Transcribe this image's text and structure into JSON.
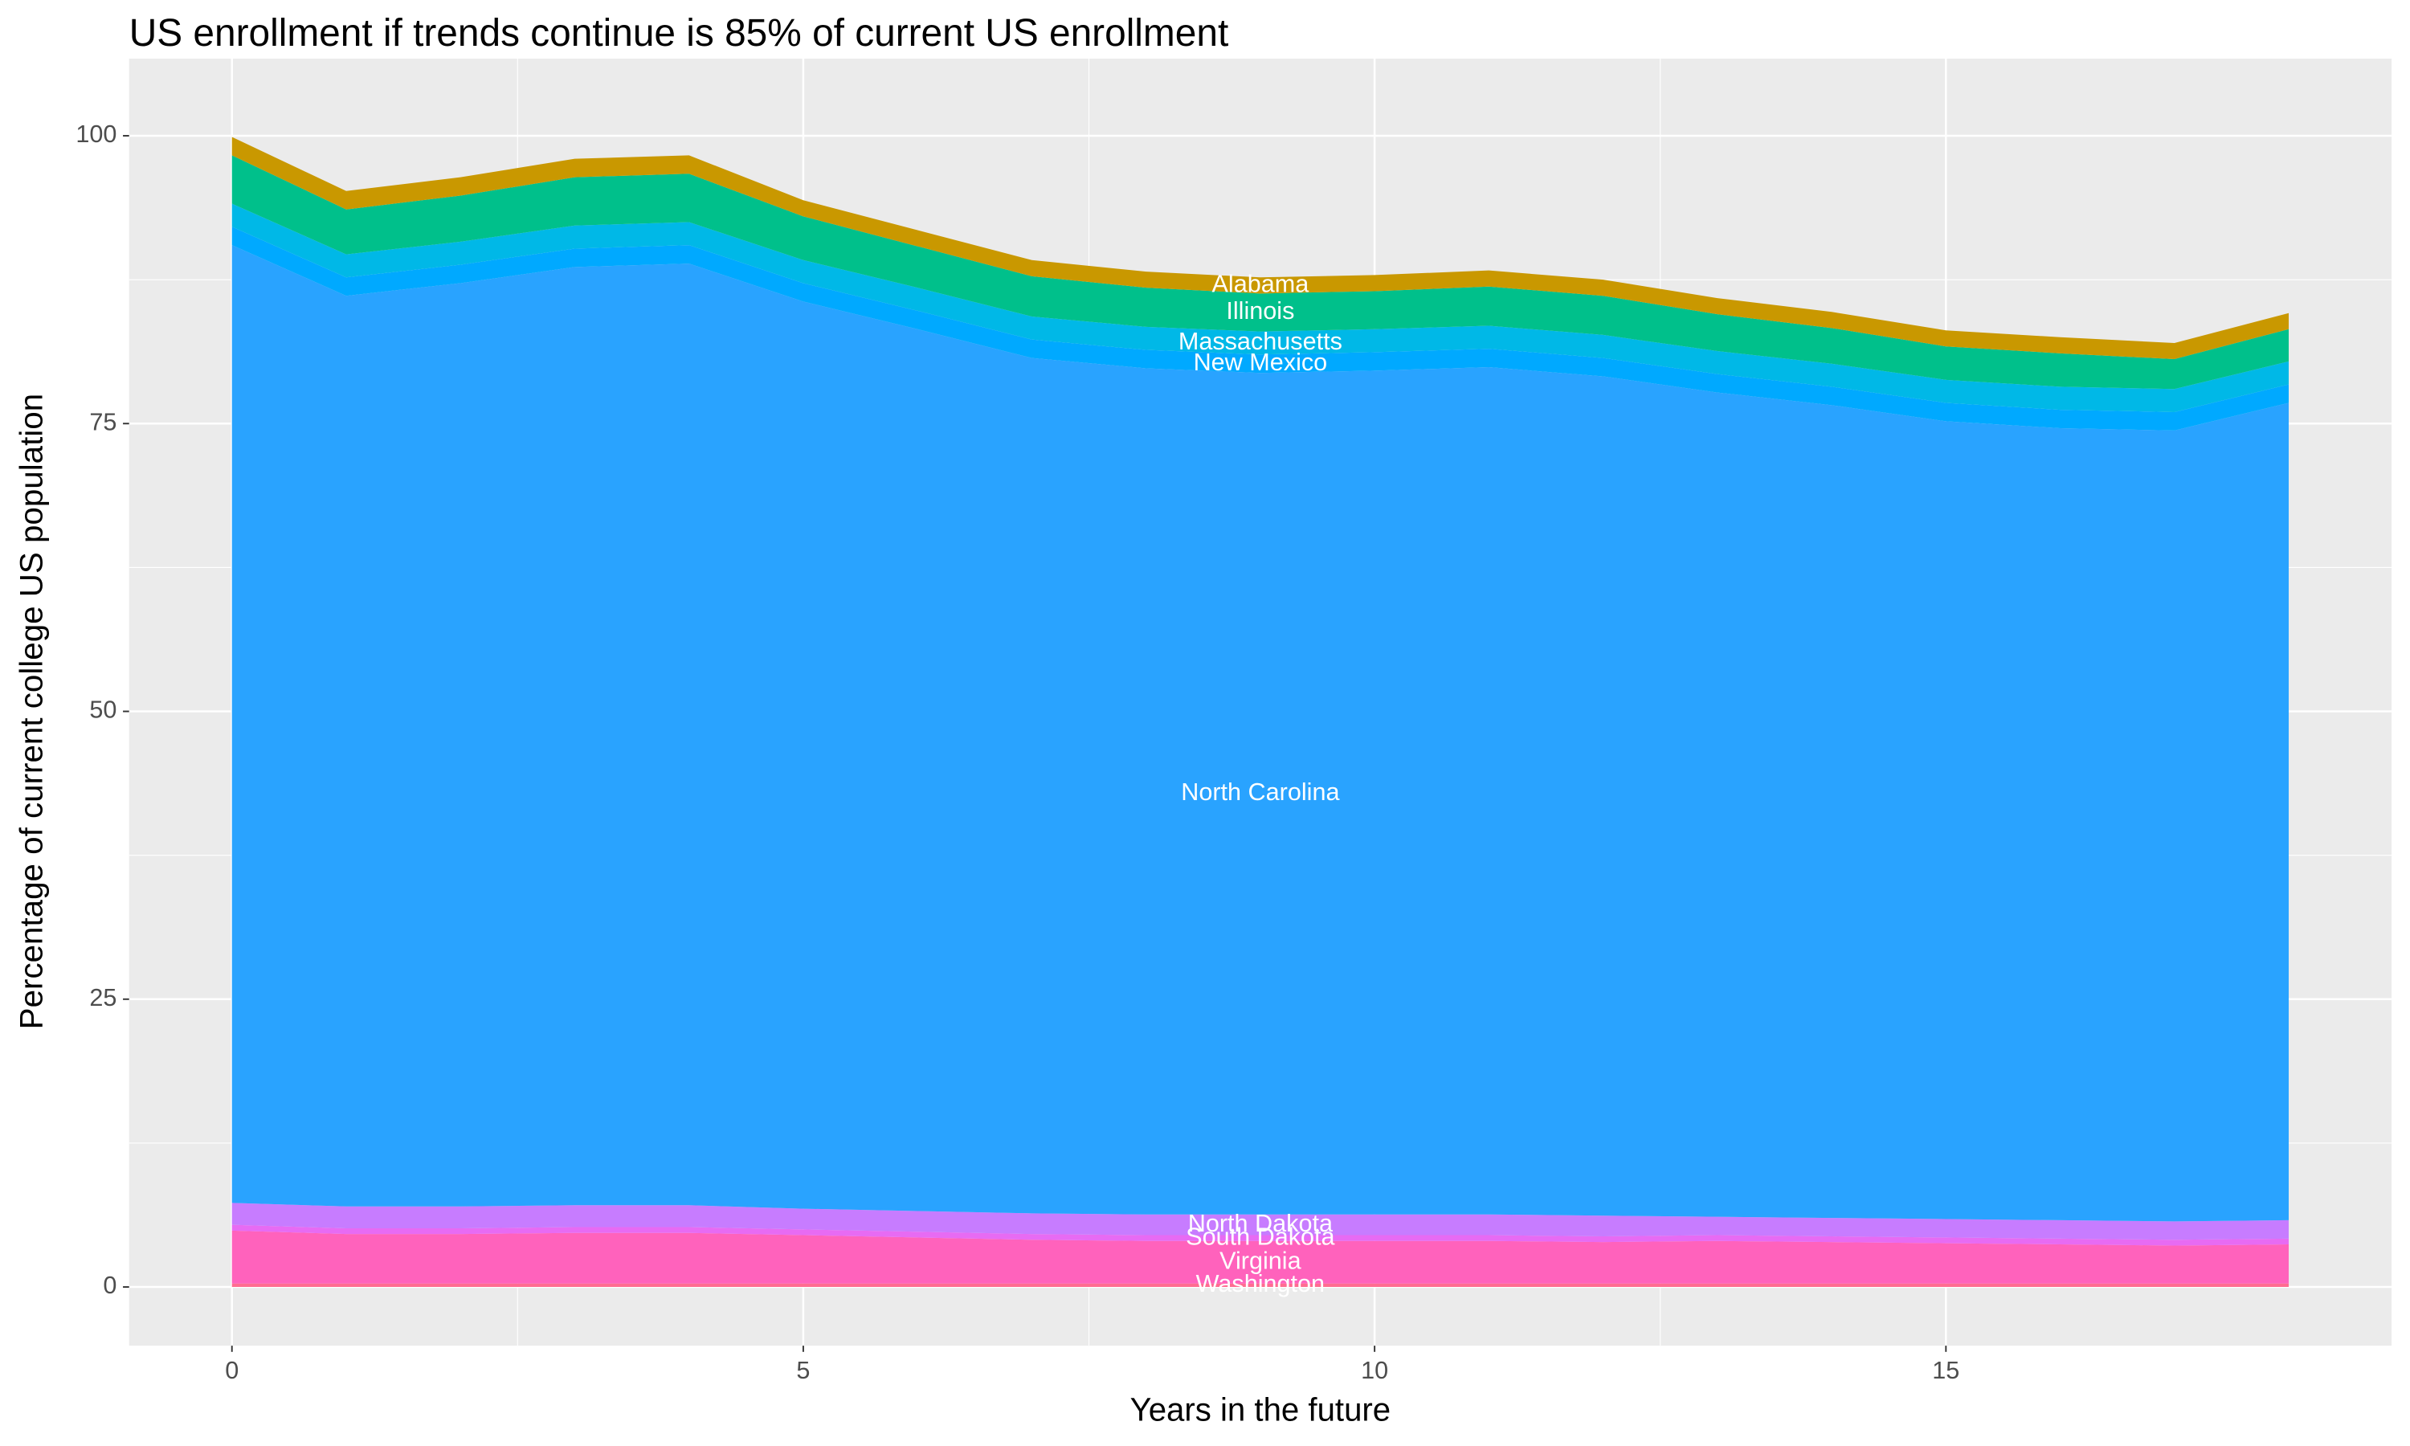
{
  "chart_data": {
    "type": "stacked_area",
    "title": "US enrollment if trends continue is 85% of current US enrollment",
    "x_label": "Years in the future",
    "y_label": "Percentage of current college US population",
    "x": [
      0,
      1,
      2,
      3,
      4,
      5,
      6,
      7,
      8,
      9,
      10,
      11,
      12,
      13,
      14,
      15,
      16,
      17,
      18
    ],
    "xlim": [
      -0.9,
      18.9
    ],
    "ylim": [
      -5.1,
      106.7
    ],
    "xticks": [
      0,
      5,
      10,
      15
    ],
    "yticks": [
      0,
      25,
      50,
      75,
      100
    ],
    "grid": true,
    "series": [
      {
        "name": "Washington",
        "color": "#ff6c91",
        "values": [
          0.3,
          0.3,
          0.3,
          0.3,
          0.3,
          0.3,
          0.3,
          0.3,
          0.3,
          0.3,
          0.3,
          0.3,
          0.3,
          0.3,
          0.3,
          0.3,
          0.3,
          0.3,
          0.3
        ]
      },
      {
        "name": "Virginia",
        "color": "#ff62bc",
        "values": [
          4.6,
          4.3,
          4.3,
          4.4,
          4.4,
          4.2,
          4.0,
          3.8,
          3.7,
          3.7,
          3.7,
          3.7,
          3.6,
          3.7,
          3.6,
          3.5,
          3.4,
          3.3,
          3.4
        ]
      },
      {
        "name": "South Dakota",
        "color": "#e76bf3",
        "values": [
          0.5,
          0.5,
          0.5,
          0.5,
          0.5,
          0.5,
          0.5,
          0.5,
          0.5,
          0.5,
          0.5,
          0.5,
          0.5,
          0.5,
          0.5,
          0.5,
          0.5,
          0.5,
          0.5
        ]
      },
      {
        "name": "North Dakota",
        "color": "#c77cff",
        "values": [
          1.9,
          1.9,
          1.9,
          1.9,
          1.9,
          1.8,
          1.8,
          1.8,
          1.8,
          1.8,
          1.8,
          1.8,
          1.8,
          1.6,
          1.6,
          1.6,
          1.6,
          1.6,
          1.6
        ]
      },
      {
        "name": "North Carolina",
        "color": "#29a3ff",
        "values": [
          83.2,
          79.1,
          80.2,
          81.5,
          81.8,
          78.8,
          76.6,
          74.3,
          73.5,
          73.1,
          73.3,
          73.6,
          72.9,
          71.6,
          70.6,
          69.3,
          68.8,
          68.7,
          71.0
        ]
      },
      {
        "name": "New Mexico",
        "color": "#00a9ff",
        "values": [
          1.6,
          1.6,
          1.6,
          1.6,
          1.6,
          1.6,
          1.6,
          1.6,
          1.6,
          1.6,
          1.6,
          1.6,
          1.6,
          1.6,
          1.6,
          1.6,
          1.6,
          1.6,
          1.6
        ]
      },
      {
        "name": "Massachusetts",
        "color": "#00b8e7",
        "values": [
          2.0,
          2.0,
          2.0,
          2.0,
          2.0,
          2.0,
          2.0,
          2.0,
          2.0,
          2.0,
          2.0,
          2.0,
          2.0,
          2.0,
          2.0,
          2.0,
          2.0,
          2.0,
          2.0
        ]
      },
      {
        "name": "Illinois",
        "color": "#00c08b",
        "values": [
          4.2,
          3.9,
          4.0,
          4.2,
          4.2,
          3.8,
          3.6,
          3.5,
          3.4,
          3.3,
          3.3,
          3.4,
          3.4,
          3.2,
          3.1,
          2.9,
          2.9,
          2.6,
          2.8
        ]
      },
      {
        "name": "Alabama",
        "color": "#c99800",
        "values": [
          1.6,
          1.6,
          1.6,
          1.6,
          1.6,
          1.4,
          1.4,
          1.4,
          1.4,
          1.4,
          1.4,
          1.4,
          1.4,
          1.4,
          1.4,
          1.4,
          1.4,
          1.4,
          1.4
        ]
      }
    ]
  }
}
